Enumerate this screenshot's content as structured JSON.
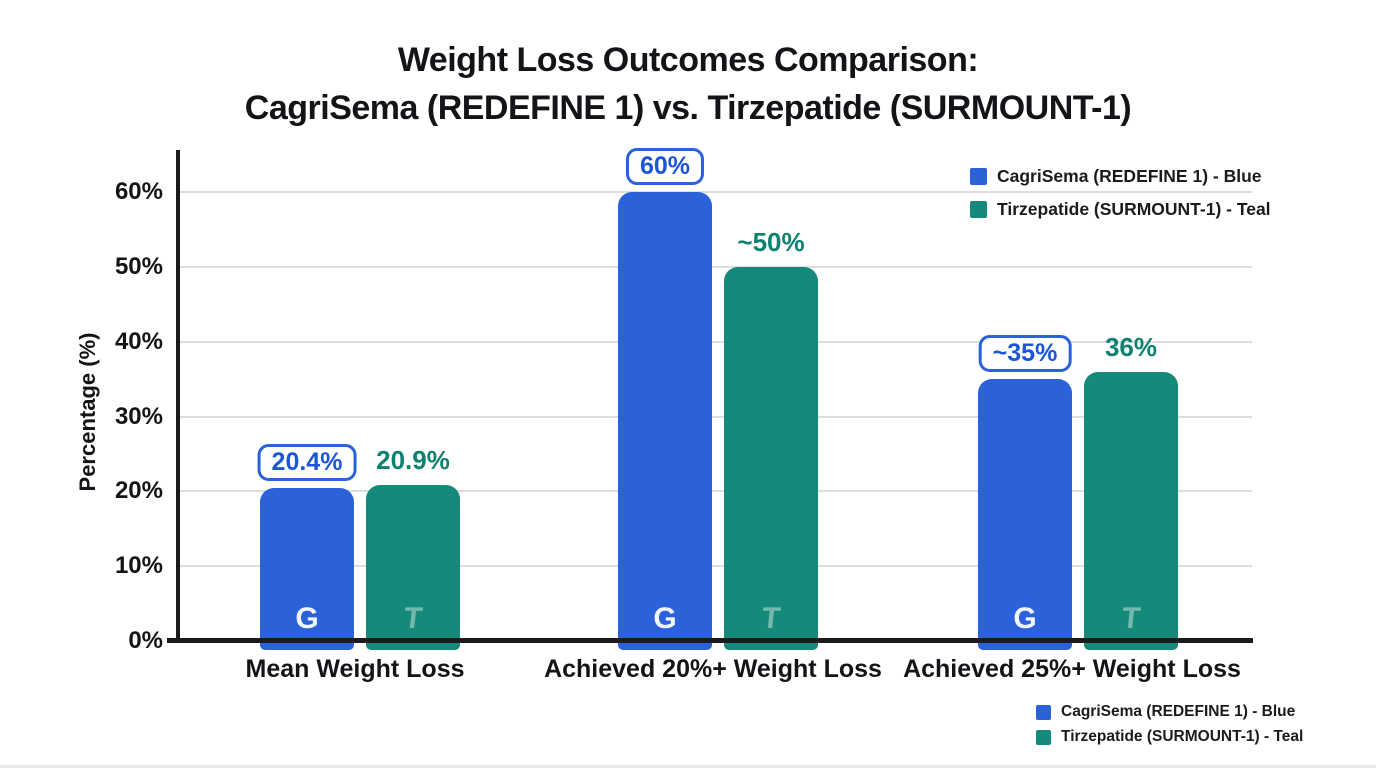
{
  "title": {
    "line1": "Weight Loss Outcomes Comparison:",
    "line2": "CagriSema (REDEFINE 1) vs. Tirzepatide (SURMOUNT-1)"
  },
  "legend": {
    "items": [
      {
        "label": "CagriSema (REDEFINE 1) - Blue",
        "color": "#2b62d9"
      },
      {
        "label": "Tirzepatide (SURMOUNT-1) - Teal",
        "color": "#15897a"
      }
    ]
  },
  "chart_data": {
    "type": "bar",
    "title": "Weight Loss Outcomes Comparison: CagriSema (REDEFINE 1) vs. Tirzepatide (SURMOUNT-1)",
    "xlabel": "",
    "ylabel": "Percentage (%)",
    "ylim": [
      0,
      66
    ],
    "yticks": [
      0,
      10,
      20,
      30,
      40,
      50,
      60
    ],
    "ytick_suffix": "%",
    "grid": true,
    "legend_position": "top-right and bottom-right",
    "categories": [
      "Mean Weight Loss",
      "Achieved 20%+ Weight Loss",
      "Achieved 25%+ Weight Loss"
    ],
    "series": [
      {
        "name": "CagriSema (REDEFINE 1)",
        "color": "#2b62d9",
        "values": [
          20.4,
          60,
          35
        ],
        "value_labels": [
          "20.4%",
          "60%",
          "~35%"
        ],
        "label_style": "boxed",
        "bar_logo": "G"
      },
      {
        "name": "Tirzepatide (SURMOUNT-1)",
        "color": "#15897a",
        "values": [
          20.9,
          50,
          36
        ],
        "value_labels": [
          "20.9%",
          "~50%",
          "36%"
        ],
        "label_style": "plain",
        "bar_logo": "T"
      }
    ]
  }
}
